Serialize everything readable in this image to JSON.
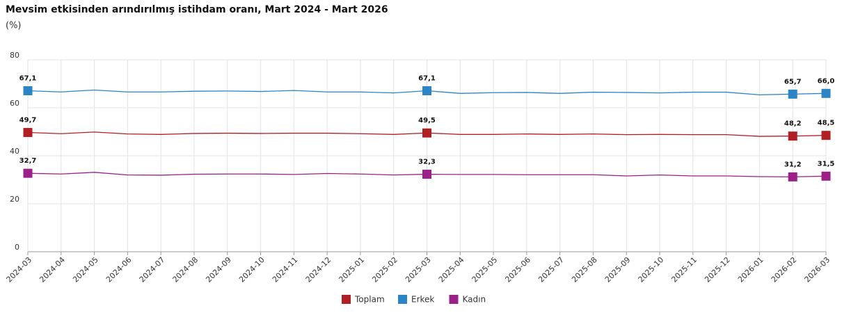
{
  "chart_data": {
    "type": "line",
    "title": "Mevsim etkisinden arındırılmış istihdam oranı, Mart 2024 - Mart 2026",
    "subtitle": "(%)",
    "categories": [
      "2024-03",
      "2024-04",
      "2024-05",
      "2024-06",
      "2024-07",
      "2024-08",
      "2024-09",
      "2024-10",
      "2024-11",
      "2024-12",
      "2025-01",
      "2025-02",
      "2025-03",
      "2025-04",
      "2025-05",
      "2025-06",
      "2025-07",
      "2025-08",
      "2025-09",
      "2025-10",
      "2025-11",
      "2025-12",
      "2026-01",
      "2026-02",
      "2026-03"
    ],
    "series": [
      {
        "name": "Toplam",
        "color": "#b01f24",
        "values": [
          49.7,
          49.2,
          49.9,
          49.1,
          48.9,
          49.3,
          49.4,
          49.3,
          49.4,
          49.4,
          49.2,
          48.9,
          49.5,
          48.9,
          48.9,
          49.1,
          48.9,
          49.1,
          48.8,
          48.9,
          48.8,
          48.8,
          48.1,
          48.2,
          48.5
        ],
        "value_labels": [
          "49,7",
          null,
          null,
          null,
          null,
          null,
          null,
          null,
          null,
          null,
          null,
          null,
          "49,5",
          null,
          null,
          null,
          null,
          null,
          null,
          null,
          null,
          null,
          null,
          "48,2",
          "48,5"
        ]
      },
      {
        "name": "Erkek",
        "color": "#2a84c6",
        "values": [
          67.1,
          66.6,
          67.4,
          66.6,
          66.6,
          66.9,
          67.0,
          66.8,
          67.2,
          66.6,
          66.6,
          66.2,
          67.1,
          66.0,
          66.3,
          66.4,
          66.0,
          66.5,
          66.4,
          66.2,
          66.5,
          66.5,
          65.4,
          65.7,
          66.0
        ],
        "value_labels": [
          "67,1",
          null,
          null,
          null,
          null,
          null,
          null,
          null,
          null,
          null,
          null,
          null,
          "67,1",
          null,
          null,
          null,
          null,
          null,
          null,
          null,
          null,
          null,
          null,
          "65,7",
          "66,0"
        ]
      },
      {
        "name": "Kadın",
        "color": "#9b2188",
        "values": [
          32.7,
          32.4,
          33.1,
          32.0,
          31.9,
          32.3,
          32.4,
          32.4,
          32.2,
          32.6,
          32.4,
          32.0,
          32.3,
          32.2,
          32.2,
          32.1,
          32.1,
          32.1,
          31.6,
          32.0,
          31.6,
          31.6,
          31.3,
          31.2,
          31.5
        ],
        "value_labels": [
          "32,7",
          null,
          null,
          null,
          null,
          null,
          null,
          null,
          null,
          null,
          null,
          null,
          "32,3",
          null,
          null,
          null,
          null,
          null,
          null,
          null,
          null,
          null,
          null,
          "31,2",
          "31,5"
        ]
      }
    ],
    "ylim": [
      0,
      80
    ],
    "yticks": [
      0,
      20,
      40,
      60,
      80
    ],
    "grid": true
  }
}
